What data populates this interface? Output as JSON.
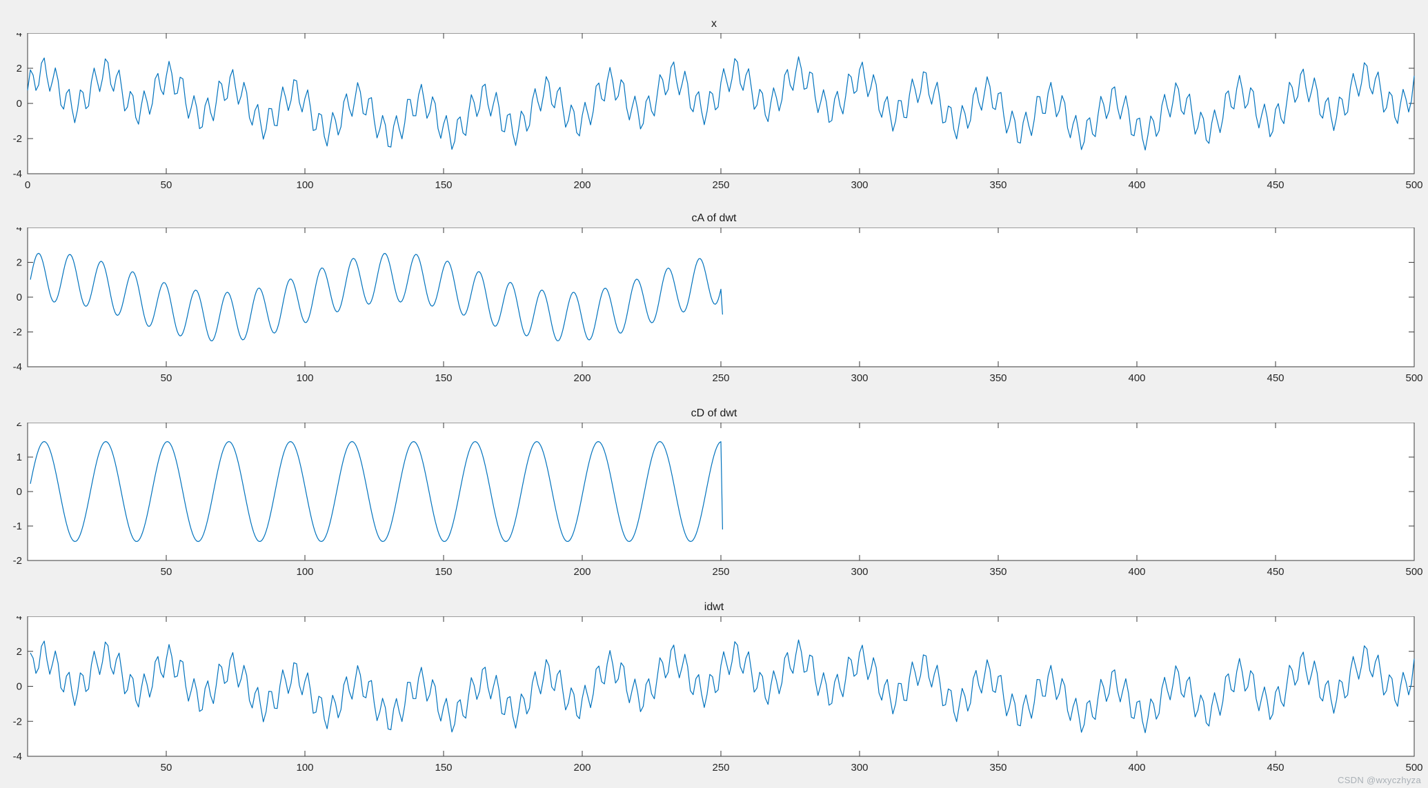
{
  "figure": {
    "background": "#f0f0f0",
    "plot_background": "#ffffff",
    "axis_color": "#3a3a3a",
    "tick_label_color": "#262626",
    "line_color": "#0072BD",
    "watermark": "CSDN @wxyczhyza"
  },
  "chart_data": [
    {
      "type": "line",
      "title": "x",
      "xlabel": "",
      "ylabel": "",
      "grid": false,
      "legend": null,
      "xlim": [
        0,
        500
      ],
      "ylim": [
        -4,
        4
      ],
      "xticks": [
        0,
        50,
        100,
        150,
        200,
        250,
        300,
        350,
        400,
        450,
        500
      ],
      "yticks": [
        -4,
        -2,
        0,
        2,
        4
      ],
      "series": [
        {
          "name": "x",
          "generator": {
            "t_start": 0,
            "t_end": 500,
            "step": 1,
            "components": [
              {
                "amp": 1.0,
                "period": 22.7,
                "phase": 0
              },
              {
                "amp": 0.9,
                "period": 4.54,
                "phase": 0
              },
              {
                "amp": 0.8,
                "period": 250,
                "phase": 1.19
              }
            ],
            "tail": []
          }
        }
      ]
    },
    {
      "type": "line",
      "title": "cA of dwt",
      "xlabel": "",
      "ylabel": "",
      "grid": false,
      "legend": null,
      "xlim": [
        0,
        500
      ],
      "ylim": [
        -4,
        4
      ],
      "xticks": [
        50,
        100,
        150,
        200,
        250,
        300,
        350,
        400,
        450,
        500
      ],
      "yticks": [
        -4,
        -2,
        0,
        2,
        4
      ],
      "series": [
        {
          "name": "cA",
          "generator": {
            "t_start": 1,
            "t_end": 250,
            "step": 0.5,
            "components": [
              {
                "amp": 1.41,
                "period": 11.35,
                "phase": -0.6
              },
              {
                "amp": 1.13,
                "period": 125,
                "phase": 1.19
              }
            ],
            "tail": [
              [
                250.6,
                -1.0
              ]
            ]
          }
        }
      ]
    },
    {
      "type": "line",
      "title": "cD of dwt",
      "xlabel": "",
      "ylabel": "",
      "grid": false,
      "legend": null,
      "xlim": [
        0,
        500
      ],
      "ylim": [
        -2,
        2
      ],
      "xticks": [
        50,
        100,
        150,
        200,
        250,
        300,
        350,
        400,
        450,
        500
      ],
      "yticks": [
        -2,
        -1,
        0,
        1,
        2
      ],
      "series": [
        {
          "name": "cD",
          "generator": {
            "t_start": 1,
            "t_end": 250,
            "step": 0.5,
            "components": [
              {
                "amp": 1.45,
                "period": 22.2,
                "phase": -0.127
              }
            ],
            "tail": [
              [
                250.6,
                -1.1
              ]
            ]
          }
        }
      ]
    },
    {
      "type": "line",
      "title": "idwt",
      "xlabel": "",
      "ylabel": "",
      "grid": false,
      "legend": null,
      "xlim": [
        0,
        500
      ],
      "ylim": [
        -4,
        4
      ],
      "xticks": [
        50,
        100,
        150,
        200,
        250,
        300,
        350,
        400,
        450,
        500
      ],
      "yticks": [
        -4,
        -2,
        0,
        2,
        4
      ],
      "series": [
        {
          "name": "idwt",
          "generator": {
            "t_start": 1,
            "t_end": 500,
            "step": 1,
            "components": [
              {
                "amp": 1.0,
                "period": 22.7,
                "phase": 0
              },
              {
                "amp": 0.9,
                "period": 4.54,
                "phase": 0
              },
              {
                "amp": 0.8,
                "period": 250,
                "phase": 1.19
              }
            ],
            "tail": []
          }
        }
      ]
    }
  ]
}
